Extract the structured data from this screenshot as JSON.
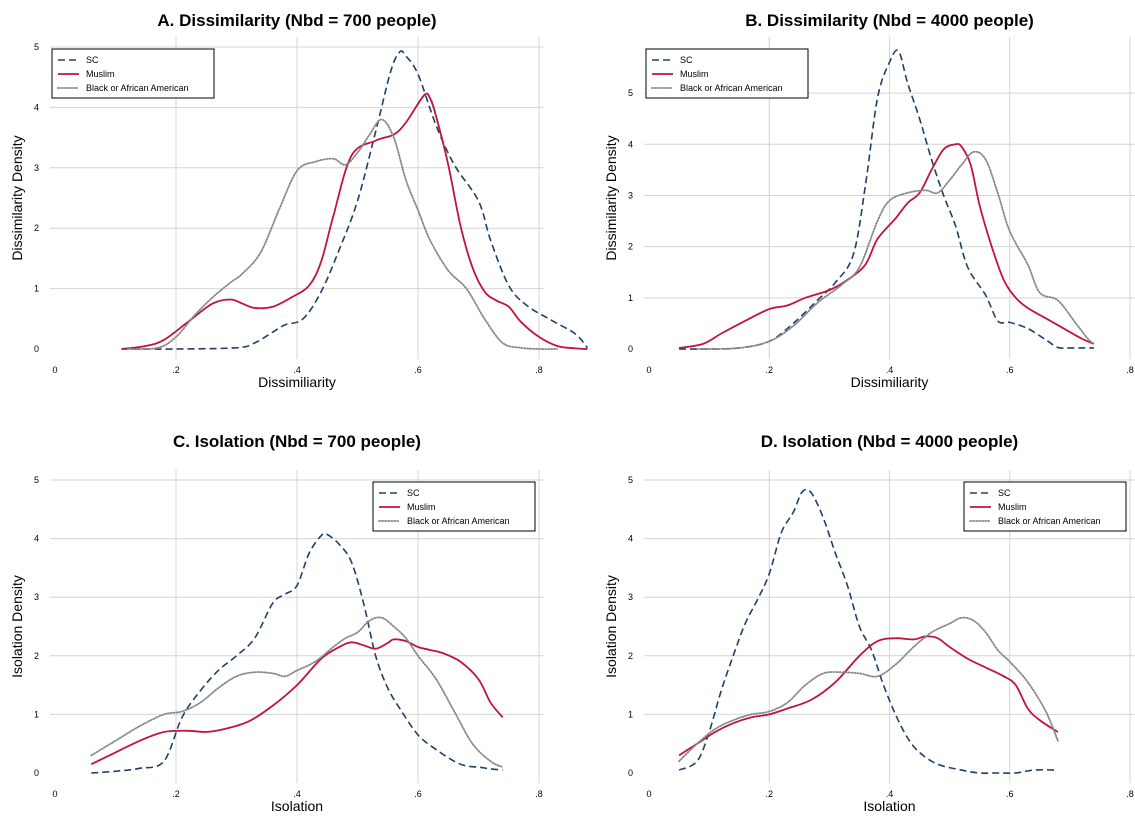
{
  "chart_data": [
    {
      "type": "line",
      "title": "A. Dissimilarity (Nbd = 700 people)",
      "xlabel": "Dissimiliarity",
      "ylabel": "Dissimilarity Density",
      "xlim": [
        0,
        0.8
      ],
      "ylim": [
        0,
        5
      ],
      "xticks": [
        0,
        0.2,
        0.4,
        0.6,
        0.8
      ],
      "xtick_labels": [
        "0",
        ".2",
        ".4",
        ".6",
        ".8"
      ],
      "yticks": [
        0,
        1,
        2,
        3,
        4,
        5
      ],
      "ytick_labels": [
        "0",
        "1",
        "2",
        "3",
        "4",
        "5"
      ],
      "grid": true,
      "legend_position": "top-left",
      "series": [
        {
          "name": "SC",
          "style": "dashed",
          "color": "#1f3f6b",
          "x": [
            0.11,
            0.2,
            0.3,
            0.33,
            0.36,
            0.38,
            0.41,
            0.44,
            0.47,
            0.5,
            0.53,
            0.555,
            0.57,
            0.58,
            0.6,
            0.63,
            0.66,
            0.7,
            0.72,
            0.75,
            0.78,
            0.82,
            0.86,
            0.88
          ],
          "y": [
            0,
            0,
            0.02,
            0.1,
            0.28,
            0.4,
            0.5,
            0.95,
            1.65,
            2.45,
            3.6,
            4.6,
            4.92,
            4.85,
            4.55,
            3.7,
            3.05,
            2.45,
            1.8,
            1.05,
            0.72,
            0.48,
            0.25,
            0.02
          ]
        },
        {
          "name": "Muslim",
          "style": "solid",
          "color": "#c0143c",
          "x": [
            0.11,
            0.15,
            0.18,
            0.22,
            0.26,
            0.29,
            0.31,
            0.33,
            0.36,
            0.39,
            0.42,
            0.44,
            0.46,
            0.49,
            0.53,
            0.56,
            0.58,
            0.61,
            0.62,
            0.63,
            0.65,
            0.67,
            0.69,
            0.71,
            0.73,
            0.75,
            0.77,
            0.8,
            0.83,
            0.86,
            0.88
          ],
          "y": [
            0,
            0.05,
            0.15,
            0.45,
            0.75,
            0.82,
            0.75,
            0.68,
            0.7,
            0.85,
            1.05,
            1.45,
            2.2,
            3.2,
            3.45,
            3.55,
            3.75,
            4.2,
            4.15,
            3.85,
            3.05,
            2.05,
            1.35,
            0.95,
            0.8,
            0.7,
            0.45,
            0.2,
            0.05,
            0.01,
            0
          ]
        },
        {
          "name": "Black or African American",
          "style": "dotted",
          "color": "#888888",
          "x": [
            0.12,
            0.17,
            0.2,
            0.23,
            0.26,
            0.29,
            0.31,
            0.34,
            0.37,
            0.4,
            0.43,
            0.46,
            0.48,
            0.5,
            0.52,
            0.54,
            0.56,
            0.58,
            0.6,
            0.62,
            0.65,
            0.68,
            0.71,
            0.74,
            0.77,
            0.8,
            0.83
          ],
          "y": [
            0,
            0.02,
            0.2,
            0.55,
            0.85,
            1.1,
            1.25,
            1.6,
            2.3,
            2.95,
            3.1,
            3.15,
            3.05,
            3.25,
            3.55,
            3.8,
            3.5,
            2.8,
            2.3,
            1.8,
            1.3,
            1.0,
            0.5,
            0.1,
            0.02,
            0,
            0
          ]
        }
      ]
    },
    {
      "type": "line",
      "title": "B. Dissimilarity (Nbd = 4000 people)",
      "xlabel": "Dissimiliarity",
      "ylabel": "Dissimilarity Density",
      "xlim": [
        0,
        0.8
      ],
      "ylim": [
        0,
        5.9
      ],
      "xticks": [
        0,
        0.2,
        0.4,
        0.6,
        0.8
      ],
      "xtick_labels": [
        "0",
        ".2",
        ".4",
        ".6",
        ".8"
      ],
      "yticks": [
        0,
        1,
        2,
        3,
        4,
        5
      ],
      "ytick_labels": [
        "0",
        "1",
        "2",
        "3",
        "4",
        "5"
      ],
      "grid": true,
      "legend_position": "top-left",
      "series": [
        {
          "name": "SC",
          "style": "dashed",
          "color": "#1f3f6b",
          "x": [
            0.05,
            0.1,
            0.15,
            0.2,
            0.24,
            0.28,
            0.31,
            0.34,
            0.36,
            0.38,
            0.4,
            0.415,
            0.43,
            0.45,
            0.47,
            0.49,
            0.51,
            0.53,
            0.56,
            0.58,
            0.6,
            0.63,
            0.66,
            0.68,
            0.7,
            0.72,
            0.74
          ],
          "y": [
            0,
            0,
            0.02,
            0.15,
            0.5,
            0.95,
            1.3,
            1.85,
            3.2,
            4.9,
            5.6,
            5.82,
            5.2,
            4.5,
            3.7,
            3.0,
            2.4,
            1.6,
            1.05,
            0.55,
            0.52,
            0.4,
            0.18,
            0.03,
            0.02,
            0.02,
            0.02
          ]
        },
        {
          "name": "Muslim",
          "style": "solid",
          "color": "#c0143c",
          "x": [
            0.05,
            0.09,
            0.12,
            0.16,
            0.2,
            0.23,
            0.26,
            0.3,
            0.33,
            0.36,
            0.38,
            0.41,
            0.43,
            0.45,
            0.47,
            0.49,
            0.51,
            0.52,
            0.535,
            0.55,
            0.57,
            0.59,
            0.61,
            0.63,
            0.66,
            0.69,
            0.72,
            0.74
          ],
          "y": [
            0.02,
            0.1,
            0.3,
            0.55,
            0.78,
            0.85,
            1.0,
            1.15,
            1.35,
            1.65,
            2.15,
            2.55,
            2.85,
            3.05,
            3.5,
            3.9,
            4.0,
            3.95,
            3.6,
            2.8,
            2.0,
            1.35,
            1.0,
            0.8,
            0.6,
            0.4,
            0.2,
            0.1
          ]
        },
        {
          "name": "Black or African American",
          "style": "dotted",
          "color": "#888888",
          "x": [
            0.08,
            0.15,
            0.2,
            0.24,
            0.28,
            0.32,
            0.35,
            0.38,
            0.4,
            0.43,
            0.46,
            0.48,
            0.5,
            0.52,
            0.54,
            0.56,
            0.58,
            0.6,
            0.63,
            0.65,
            0.68,
            0.71,
            0.73,
            0.74
          ],
          "y": [
            0,
            0.02,
            0.15,
            0.45,
            0.9,
            1.25,
            1.6,
            2.5,
            2.9,
            3.05,
            3.1,
            3.05,
            3.3,
            3.6,
            3.85,
            3.7,
            3.05,
            2.3,
            1.65,
            1.1,
            0.95,
            0.5,
            0.2,
            0.1
          ]
        }
      ]
    },
    {
      "type": "line",
      "title": "C. Isolation (Nbd = 700 people)",
      "xlabel": "Isolation",
      "ylabel": "Isolation Density",
      "xlim": [
        0,
        0.8
      ],
      "ylim": [
        0,
        5
      ],
      "xticks": [
        0,
        0.2,
        0.4,
        0.6,
        0.8
      ],
      "xtick_labels": [
        "0",
        ".2",
        ".4",
        ".6",
        ".8"
      ],
      "yticks": [
        0,
        1,
        2,
        3,
        4,
        5
      ],
      "ytick_labels": [
        "0",
        "1",
        "2",
        "3",
        "4",
        "5"
      ],
      "grid": true,
      "legend_position": "top-right",
      "series": [
        {
          "name": "SC",
          "style": "dashed",
          "color": "#1f3f6b",
          "x": [
            0.06,
            0.1,
            0.14,
            0.18,
            0.21,
            0.24,
            0.27,
            0.3,
            0.33,
            0.36,
            0.38,
            0.4,
            0.42,
            0.44,
            0.45,
            0.47,
            0.49,
            0.51,
            0.53,
            0.55,
            0.57,
            0.6,
            0.63,
            0.66,
            0.68,
            0.7,
            0.72,
            0.74
          ],
          "y": [
            0,
            0.03,
            0.08,
            0.2,
            0.95,
            1.4,
            1.75,
            2.0,
            2.3,
            2.9,
            3.05,
            3.2,
            3.75,
            4.05,
            4.07,
            3.9,
            3.6,
            2.9,
            2.0,
            1.45,
            1.1,
            0.65,
            0.4,
            0.2,
            0.12,
            0.1,
            0.07,
            0.05
          ]
        },
        {
          "name": "Muslim",
          "style": "solid",
          "color": "#c0143c",
          "x": [
            0.06,
            0.1,
            0.14,
            0.18,
            0.22,
            0.25,
            0.28,
            0.32,
            0.36,
            0.4,
            0.44,
            0.47,
            0.49,
            0.51,
            0.53,
            0.55,
            0.56,
            0.58,
            0.6,
            0.62,
            0.64,
            0.67,
            0.7,
            0.72,
            0.74
          ],
          "y": [
            0.15,
            0.35,
            0.55,
            0.7,
            0.72,
            0.7,
            0.75,
            0.88,
            1.15,
            1.5,
            1.95,
            2.15,
            2.23,
            2.18,
            2.12,
            2.22,
            2.28,
            2.25,
            2.15,
            2.1,
            2.05,
            1.9,
            1.6,
            1.2,
            0.95
          ]
        },
        {
          "name": "Black or African American",
          "style": "dotted",
          "color": "#888888",
          "x": [
            0.06,
            0.1,
            0.14,
            0.18,
            0.21,
            0.24,
            0.27,
            0.3,
            0.33,
            0.36,
            0.38,
            0.4,
            0.43,
            0.46,
            0.48,
            0.5,
            0.52,
            0.54,
            0.56,
            0.58,
            0.6,
            0.63,
            0.66,
            0.69,
            0.72,
            0.74
          ],
          "y": [
            0.3,
            0.55,
            0.8,
            1.0,
            1.05,
            1.2,
            1.45,
            1.65,
            1.72,
            1.7,
            1.65,
            1.75,
            1.9,
            2.15,
            2.3,
            2.4,
            2.6,
            2.65,
            2.5,
            2.3,
            2.0,
            1.6,
            1.05,
            0.5,
            0.2,
            0.1
          ]
        }
      ]
    },
    {
      "type": "line",
      "title": "D. Isolation (Nbd = 4000 people)",
      "xlabel": "Isolation",
      "ylabel": "Isolation Density",
      "xlim": [
        0,
        0.8
      ],
      "ylim": [
        0,
        5
      ],
      "xticks": [
        0,
        0.2,
        0.4,
        0.6,
        0.8
      ],
      "xtick_labels": [
        "0",
        ".2",
        ".4",
        ".6",
        ".8"
      ],
      "yticks": [
        0,
        1,
        2,
        3,
        4,
        5
      ],
      "ytick_labels": [
        "0",
        "1",
        "2",
        "3",
        "4",
        "5"
      ],
      "grid": true,
      "legend_position": "top-right",
      "series": [
        {
          "name": "SC",
          "style": "dashed",
          "color": "#1f3f6b",
          "x": [
            0.05,
            0.08,
            0.1,
            0.12,
            0.14,
            0.16,
            0.18,
            0.2,
            0.22,
            0.24,
            0.255,
            0.27,
            0.29,
            0.31,
            0.33,
            0.35,
            0.37,
            0.39,
            0.41,
            0.43,
            0.45,
            0.48,
            0.52,
            0.55,
            0.58,
            0.61,
            0.64,
            0.68
          ],
          "y": [
            0.05,
            0.2,
            0.7,
            1.4,
            2.0,
            2.55,
            2.95,
            3.4,
            4.1,
            4.45,
            4.8,
            4.78,
            4.35,
            3.75,
            3.2,
            2.5,
            2.1,
            1.5,
            1.0,
            0.6,
            0.35,
            0.15,
            0.05,
            0,
            0,
            0,
            0.05,
            0.05
          ]
        },
        {
          "name": "Muslim",
          "style": "solid",
          "color": "#c0143c",
          "x": [
            0.05,
            0.08,
            0.11,
            0.14,
            0.17,
            0.2,
            0.23,
            0.27,
            0.31,
            0.35,
            0.38,
            0.41,
            0.44,
            0.46,
            0.48,
            0.5,
            0.53,
            0.56,
            0.59,
            0.61,
            0.63,
            0.65,
            0.68
          ],
          "y": [
            0.3,
            0.5,
            0.7,
            0.85,
            0.95,
            1.0,
            1.1,
            1.25,
            1.55,
            2.0,
            2.25,
            2.3,
            2.28,
            2.33,
            2.3,
            2.15,
            1.95,
            1.8,
            1.65,
            1.5,
            1.1,
            0.9,
            0.7
          ]
        },
        {
          "name": "Black or African American",
          "style": "dotted",
          "color": "#888888",
          "x": [
            0.05,
            0.08,
            0.11,
            0.14,
            0.17,
            0.2,
            0.23,
            0.26,
            0.29,
            0.32,
            0.35,
            0.38,
            0.41,
            0.44,
            0.47,
            0.5,
            0.52,
            0.54,
            0.56,
            0.58,
            0.6,
            0.63,
            0.66,
            0.68
          ],
          "y": [
            0.2,
            0.5,
            0.75,
            0.9,
            1.0,
            1.05,
            1.2,
            1.5,
            1.7,
            1.72,
            1.7,
            1.65,
            1.85,
            2.15,
            2.4,
            2.55,
            2.65,
            2.6,
            2.4,
            2.1,
            1.9,
            1.55,
            1.05,
            0.55
          ]
        }
      ]
    }
  ]
}
